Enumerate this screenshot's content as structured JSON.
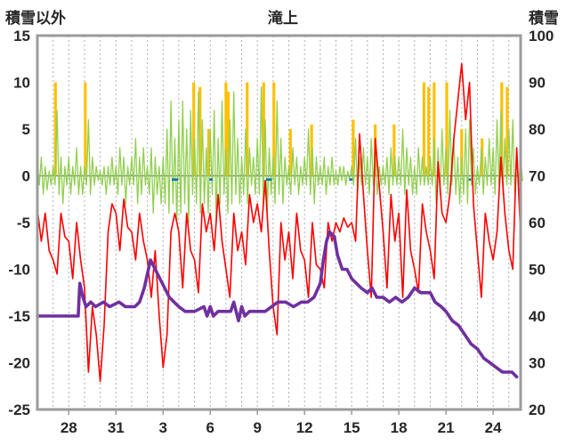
{
  "header": {
    "left_axis_title": "積雪以外",
    "title": "滝上",
    "right_axis_title": "積雪"
  },
  "chart_data": {
    "type": "line",
    "title": "滝上",
    "left_axis": {
      "title": "積雪以外",
      "ylim": [
        -25,
        15
      ],
      "ticks": [
        15,
        10,
        5,
        0,
        -5,
        -10,
        -15,
        -20,
        -25
      ]
    },
    "right_axis": {
      "title": "積雪",
      "ylim": [
        20,
        100
      ],
      "ticks": [
        100,
        90,
        80,
        70,
        60,
        50,
        40,
        30,
        20
      ]
    },
    "x_axis": {
      "domain": [
        0,
        30.75
      ],
      "gridline_step_days": 1,
      "tick_days": [
        2,
        5,
        8,
        11,
        14,
        17,
        20,
        23,
        26,
        29
      ],
      "tick_labels": [
        "28",
        "31",
        "3",
        "6",
        "9",
        "12",
        "15",
        "18",
        "21",
        "24"
      ]
    },
    "style": {
      "gridline_color": "#adadad",
      "zero_line_color": "#808080",
      "frame_color": "#9b9b9b",
      "text_color": "#262626"
    },
    "series": [
      {
        "name": "orange-bars",
        "kind": "bar",
        "axis": "left",
        "color": "#FFC000",
        "bar_width_days": 0.18,
        "points": [
          [
            1.15,
            10
          ],
          [
            3.05,
            10
          ],
          [
            9.95,
            10
          ],
          [
            10.35,
            9.5
          ],
          [
            10.9,
            5
          ],
          [
            12.0,
            10
          ],
          [
            12.15,
            9
          ],
          [
            13.35,
            10
          ],
          [
            14.4,
            10
          ],
          [
            15.05,
            10
          ],
          [
            16.1,
            5
          ],
          [
            17.45,
            5.5
          ],
          [
            20.1,
            6
          ],
          [
            21.5,
            5.5
          ],
          [
            22.7,
            5.5
          ],
          [
            24.6,
            10
          ],
          [
            24.9,
            9.5
          ],
          [
            25.25,
            10
          ],
          [
            26.05,
            10
          ],
          [
            27.0,
            5
          ],
          [
            28.3,
            4
          ],
          [
            29.55,
            10
          ],
          [
            29.9,
            9.5
          ]
        ]
      },
      {
        "name": "green-line",
        "kind": "line",
        "axis": "left",
        "color": "#92D050",
        "stroke_width": 1.3,
        "start_day": 0,
        "step_days": 0.125,
        "values": [
          1.5,
          -1,
          2,
          -2,
          1,
          -1.5,
          0.5,
          -1,
          1,
          -1,
          7,
          -2,
          2,
          -3,
          1,
          -1,
          2,
          -2,
          1,
          -1,
          3,
          -2,
          1,
          -2,
          1,
          -1,
          6,
          -2,
          2,
          -1,
          1,
          -0.5,
          0.5,
          -1,
          1,
          -2,
          1,
          -1,
          2,
          -1,
          1,
          -2,
          3,
          -1,
          2,
          -3,
          1,
          -1,
          2,
          -1,
          4,
          -3,
          2,
          -2,
          3,
          -1,
          1,
          -2,
          3,
          -4,
          2,
          -2,
          1,
          -3,
          2,
          -3,
          5,
          -4,
          8,
          -3,
          4,
          -5,
          6,
          -4,
          8,
          -3,
          5,
          -5,
          7,
          -2,
          4,
          -3,
          9,
          -4,
          6,
          -3,
          3,
          -4,
          5,
          -2,
          7,
          -5,
          4,
          -3,
          8,
          -2,
          3,
          -4,
          6,
          -3,
          9,
          -2,
          4,
          -3,
          2,
          -2,
          5,
          -3,
          3,
          -1,
          2,
          -2,
          4,
          -2,
          9.5,
          -3,
          6,
          -4,
          3,
          -2,
          2,
          -3,
          8,
          -2,
          4,
          -3,
          2,
          -1,
          1,
          -2,
          3,
          -1,
          2,
          -2,
          1,
          -1,
          2,
          -1,
          5,
          -2,
          3,
          -3,
          2,
          -1,
          1,
          -1,
          2,
          -2,
          1,
          -1,
          2,
          -1,
          0.5,
          -1,
          1,
          -0.5,
          1,
          -1,
          0.5,
          -0.5,
          1,
          -1,
          4,
          -2,
          2,
          -1,
          3,
          -1,
          2,
          -2,
          4,
          -1,
          3,
          -2,
          1,
          -1,
          1,
          -1,
          2,
          -2,
          3,
          -1,
          2,
          -1,
          2,
          -1,
          5,
          -2,
          3,
          -1,
          2,
          -2,
          1,
          -2,
          3,
          -1,
          2,
          -1,
          1,
          -1,
          2,
          -1,
          4,
          -3,
          3,
          -2,
          5,
          -1,
          3,
          -2,
          7,
          -1,
          4,
          -2,
          2,
          -3,
          2,
          -2,
          5,
          -3,
          6,
          -1,
          3,
          -2,
          1,
          -1,
          3,
          -2,
          2,
          -1,
          4,
          -1,
          3,
          -2,
          6,
          -1,
          7,
          -2,
          4,
          -1,
          5,
          -1,
          6,
          -2,
          3,
          -1,
          2,
          -0.5
        ]
      },
      {
        "name": "red-line",
        "kind": "line",
        "axis": "left",
        "color": "#FF0000",
        "stroke_width": 1.6,
        "start_day": 0,
        "step_days": 0.25,
        "values": [
          -3.5,
          -7,
          -4,
          -8,
          -9,
          -10.5,
          -4,
          -6.5,
          -7,
          -11,
          -5,
          -9,
          -12,
          -21,
          -14,
          -17,
          -22,
          -16,
          -6,
          -3,
          -4,
          -8,
          -2.5,
          -5.5,
          -6,
          -9,
          -4,
          -7,
          -9,
          -13,
          -8,
          -15,
          -20.5,
          -17,
          -6,
          -4,
          -6,
          -12,
          -4,
          -8,
          -9,
          -12.5,
          -3,
          -6,
          -4,
          -8,
          -2,
          -7,
          -10,
          -13,
          -4,
          -8,
          -6,
          -9.5,
          -2,
          -5,
          -3,
          -6,
          -0.5,
          -8,
          -14,
          -17,
          -5,
          -9,
          -6,
          -11,
          -4,
          -8,
          -9,
          -13,
          -5,
          -9.5,
          -10,
          -12,
          -5,
          -7,
          -5,
          -6,
          -4.5,
          -5.5,
          -5,
          -7,
          4.5,
          -2,
          -8,
          -13,
          4,
          -1,
          -6,
          -12,
          -2,
          -7,
          -4,
          -13,
          -1.5,
          -8,
          -10,
          -12.5,
          -3,
          -6,
          -8,
          -11,
          1.5,
          -4,
          -5,
          -2,
          4,
          8,
          12,
          6,
          10,
          -3,
          -8,
          -13,
          -4,
          -7,
          -9,
          -6,
          2,
          -4,
          -8,
          -10,
          3,
          -6.5
        ]
      },
      {
        "name": "purple-line",
        "kind": "line",
        "axis": "right",
        "color": "#7030A0",
        "stroke_width": 3.6,
        "points": [
          [
            0,
            40
          ],
          [
            2.6,
            40
          ],
          [
            2.7,
            47
          ],
          [
            2.9,
            44
          ],
          [
            3.1,
            42
          ],
          [
            3.4,
            43
          ],
          [
            3.7,
            42
          ],
          [
            4.2,
            43
          ],
          [
            4.6,
            42
          ],
          [
            5.2,
            43
          ],
          [
            5.6,
            42
          ],
          [
            6.2,
            42
          ],
          [
            6.5,
            43
          ],
          [
            6.8,
            46
          ],
          [
            7.0,
            49
          ],
          [
            7.2,
            52
          ],
          [
            7.5,
            50
          ],
          [
            7.8,
            48
          ],
          [
            8.1,
            46
          ],
          [
            8.4,
            44
          ],
          [
            8.7,
            43
          ],
          [
            9.0,
            42
          ],
          [
            9.4,
            41
          ],
          [
            10.0,
            41
          ],
          [
            10.6,
            42
          ],
          [
            10.8,
            40
          ],
          [
            11.0,
            42
          ],
          [
            11.2,
            40
          ],
          [
            11.5,
            41
          ],
          [
            12.3,
            41
          ],
          [
            12.5,
            43
          ],
          [
            12.8,
            39
          ],
          [
            13.0,
            42
          ],
          [
            13.2,
            40
          ],
          [
            13.5,
            41
          ],
          [
            14.5,
            41
          ],
          [
            15.3,
            43
          ],
          [
            15.8,
            43
          ],
          [
            16.3,
            42
          ],
          [
            16.8,
            43
          ],
          [
            17.2,
            43
          ],
          [
            17.6,
            44
          ],
          [
            18.0,
            47
          ],
          [
            18.2,
            52
          ],
          [
            18.4,
            56
          ],
          [
            18.6,
            58
          ],
          [
            18.9,
            57
          ],
          [
            19.1,
            53
          ],
          [
            19.4,
            50
          ],
          [
            19.7,
            50
          ],
          [
            20.0,
            48
          ],
          [
            20.3,
            47
          ],
          [
            20.6,
            46
          ],
          [
            21.0,
            45
          ],
          [
            21.3,
            46
          ],
          [
            21.6,
            44
          ],
          [
            22.0,
            44
          ],
          [
            22.4,
            43
          ],
          [
            22.8,
            44
          ],
          [
            23.2,
            43
          ],
          [
            23.6,
            44
          ],
          [
            24.0,
            46
          ],
          [
            24.4,
            45
          ],
          [
            25.0,
            45
          ],
          [
            25.3,
            43
          ],
          [
            25.7,
            42
          ],
          [
            26.0,
            41
          ],
          [
            26.4,
            39
          ],
          [
            26.8,
            38
          ],
          [
            27.2,
            36
          ],
          [
            27.6,
            34
          ],
          [
            28.0,
            33
          ],
          [
            28.4,
            31
          ],
          [
            28.8,
            30
          ],
          [
            29.2,
            29
          ],
          [
            29.6,
            28
          ],
          [
            30.2,
            28
          ],
          [
            30.5,
            27
          ]
        ]
      },
      {
        "name": "blue-marks",
        "kind": "dash",
        "axis": "left",
        "color": "#0070C0",
        "segments": [
          [
            8.55,
            8.95,
            -0.4
          ],
          [
            10.95,
            11.15,
            -0.4
          ],
          [
            14.55,
            14.9,
            -0.4
          ],
          [
            19.85,
            20.05,
            -0.4
          ],
          [
            27.45,
            27.6,
            -0.4
          ]
        ]
      }
    ]
  }
}
